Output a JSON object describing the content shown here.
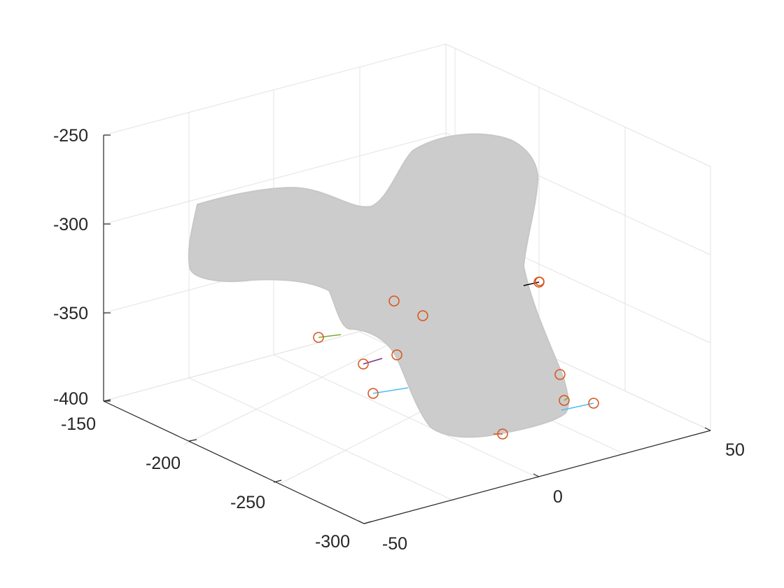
{
  "chart_data": {
    "type": "scatter",
    "title": "",
    "xlabel": "",
    "ylabel": "",
    "zlabel": "",
    "grid": true,
    "z_axis": {
      "ticks": [
        -250,
        -300,
        -350,
        -400
      ],
      "labels": [
        "-250",
        "-300",
        "-350",
        "-400"
      ]
    },
    "x_axis": {
      "ticks": [
        -50,
        0,
        50
      ],
      "labels": [
        "-50",
        "0",
        "50"
      ]
    },
    "y_axis": {
      "ticks": [
        -150,
        -200,
        -250,
        -300
      ],
      "labels": [
        "-150",
        "-200",
        "-250",
        "-300"
      ]
    },
    "surface_color": "#cccccc",
    "marker_color": "#d95319",
    "landmark_count": 12,
    "vector_colors": [
      "#4dbeee",
      "#7e2f8e",
      "#77ac30",
      "#000000",
      "#d95319"
    ]
  }
}
